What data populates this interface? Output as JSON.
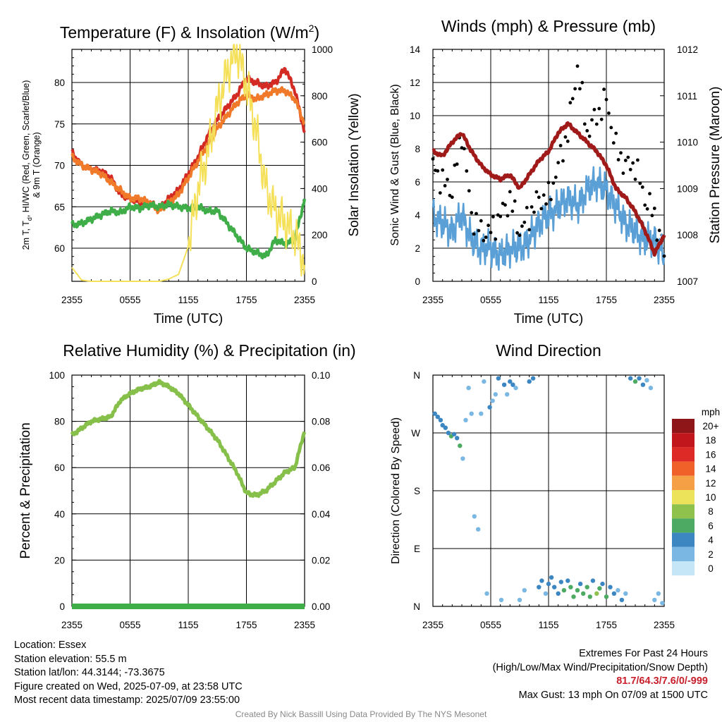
{
  "colors": {
    "t2m": "#d32a24",
    "dew": "#3fae48",
    "hiwc": "#cf1e2a",
    "t9m": "#f07a2a",
    "solar": "#f5e05a",
    "wind": "#5aa0d6",
    "gust": "#000000",
    "pressure": "#a01a1a",
    "rh": "#86c04a",
    "precip": "#3fae48"
  },
  "chart_data": [
    {
      "type": "line",
      "title": "Temperature (F) & Insolation (W/m",
      "title_superscript": "2",
      "title_tail": ")",
      "xlabel": "Time (UTC)",
      "ylabel_line1": "2m T, T",
      "ylabel_subscript": "d",
      "ylabel_line1_tail": ", HI/WC (Red, Green, Scarlet/Blue)",
      "ylabel_line2": "& 9m T (Orange)",
      "ylabel_right": "Solar Insolation (Yellow)",
      "x_ticks": [
        "2355",
        "0555",
        "1155",
        "1755",
        "2355"
      ],
      "ylim": [
        56,
        84
      ],
      "y_ticks": [
        "60",
        "65",
        "70",
        "75",
        "80"
      ],
      "y2lim": [
        0,
        1000
      ],
      "y2_ticks": [
        "0",
        "200",
        "400",
        "600",
        "800",
        "1000"
      ],
      "grid": true,
      "x_hours": [
        0,
        1,
        2,
        3,
        4,
        5,
        6,
        7,
        8,
        9,
        10,
        11,
        12,
        13,
        14,
        15,
        16,
        17,
        18,
        19,
        20,
        21,
        22,
        23,
        24
      ],
      "series": [
        {
          "key": "t2m",
          "values": [
            71.5,
            70,
            69.5,
            69.3,
            68.5,
            66.5,
            66,
            65.5,
            65.5,
            64.8,
            66,
            67,
            69,
            71,
            73.5,
            75.5,
            77,
            78.5,
            80.5,
            80,
            79.5,
            80,
            81.7,
            79,
            74
          ]
        },
        {
          "key": "t9m",
          "values": [
            71,
            70,
            69.5,
            69,
            68,
            67,
            66,
            66,
            65.5,
            64.5,
            65.5,
            66.5,
            68.5,
            70.5,
            72.5,
            74.5,
            76,
            77.5,
            78.5,
            78,
            78.5,
            79,
            79,
            78,
            75
          ]
        },
        {
          "key": "dew",
          "values": [
            62.8,
            63,
            63.5,
            64,
            64.5,
            64.3,
            65,
            64.8,
            65.2,
            65,
            65.3,
            65,
            64.8,
            65,
            64.5,
            64.5,
            63,
            61.5,
            60,
            59.5,
            59,
            61,
            60.5,
            61,
            66
          ]
        },
        {
          "key": "solar",
          "axis": "right",
          "values": [
            60,
            5,
            0,
            0,
            0,
            0,
            0,
            0,
            0,
            0,
            10,
            30,
            150,
            400,
            550,
            750,
            900,
            1000,
            850,
            650,
            400,
            300,
            250,
            200,
            80
          ]
        }
      ]
    },
    {
      "type": "line",
      "title": "Winds (mph) & Pressure (mb)",
      "xlabel": "Time (UTC)",
      "ylabel": "Sonic Wind & Gust (Blue, Black)",
      "ylabel_right": "Station Pressure (Maroon)",
      "x_ticks": [
        "2355",
        "0555",
        "1155",
        "1755",
        "2355"
      ],
      "ylim": [
        0,
        14
      ],
      "y_ticks": [
        "0",
        "2",
        "4",
        "6",
        "8",
        "10",
        "12",
        "14"
      ],
      "y2lim": [
        1007,
        1012
      ],
      "y2_ticks": [
        "1007",
        "1008",
        "1009",
        "1010",
        "1011",
        "1012"
      ],
      "grid": true,
      "x_hours": [
        0,
        1,
        2,
        3,
        4,
        5,
        6,
        7,
        8,
        9,
        10,
        11,
        12,
        13,
        14,
        15,
        16,
        17,
        18,
        19,
        20,
        21,
        22,
        23,
        24
      ],
      "series": [
        {
          "key": "wind",
          "values": [
            4,
            3.5,
            3,
            4,
            2.5,
            2,
            2,
            1.5,
            2,
            2,
            2.5,
            3.5,
            4,
            4.5,
            5,
            4.5,
            5.5,
            6,
            5.5,
            4.5,
            3.5,
            3,
            2.5,
            2.5,
            1.5
          ]
        },
        {
          "key": "gust",
          "type": "scatter",
          "values": [
            7,
            6,
            5.5,
            9,
            4,
            3,
            3,
            4,
            5,
            3,
            4,
            5,
            5,
            7,
            9,
            13,
            9,
            10,
            11,
            8,
            7,
            7,
            5,
            4,
            1.5
          ]
        },
        {
          "key": "pressure",
          "axis": "right",
          "values": [
            1009.8,
            1009.7,
            1010.0,
            1010.2,
            1009.8,
            1009.5,
            1009.3,
            1009.2,
            1009.3,
            1009.0,
            1009.3,
            1009.6,
            1009.8,
            1010.2,
            1010.4,
            1010.2,
            1010.0,
            1009.8,
            1009.5,
            1009.0,
            1008.8,
            1008.5,
            1008.1,
            1007.6,
            1008.0
          ]
        }
      ]
    },
    {
      "type": "line",
      "title": "Relative Humidity (%) & Precipitation (in)",
      "ylabel": "Percent & Precipitation",
      "x_ticks": [
        "2355",
        "0555",
        "1155",
        "1755",
        "2355"
      ],
      "ylim": [
        0,
        100
      ],
      "y_ticks": [
        "0",
        "20",
        "40",
        "60",
        "80",
        "100"
      ],
      "y2lim": [
        0,
        0.1
      ],
      "y2_ticks": [
        "0.00",
        "0.02",
        "0.04",
        "0.06",
        "0.08",
        "0.10"
      ],
      "grid": true,
      "x_hours": [
        0,
        1,
        2,
        3,
        4,
        5,
        6,
        7,
        8,
        9,
        10,
        11,
        12,
        13,
        14,
        15,
        16,
        17,
        18,
        19,
        20,
        21,
        22,
        23,
        24
      ],
      "series": [
        {
          "key": "rh",
          "values": [
            74,
            77,
            80,
            81,
            82,
            89,
            92,
            94,
            95,
            97,
            95,
            92,
            87,
            82,
            77,
            72,
            65,
            58,
            49,
            48,
            50,
            54,
            58,
            60,
            76
          ]
        },
        {
          "key": "precip",
          "axis": "right",
          "values": [
            0,
            0,
            0,
            0,
            0,
            0,
            0,
            0,
            0,
            0,
            0,
            0,
            0,
            0,
            0,
            0,
            0,
            0,
            0,
            0,
            0,
            0,
            0,
            0,
            0
          ]
        }
      ]
    },
    {
      "type": "scatter",
      "title": "Wind Direction",
      "ylabel": "Direction (Colored By Speed)",
      "x_ticks": [
        "2355",
        "0555",
        "1155",
        "1755",
        "2355"
      ],
      "y_ticks": [
        "N",
        "E",
        "S",
        "W",
        "N"
      ],
      "ylim_degrees": [
        0,
        360
      ],
      "grid": true,
      "colorbar": {
        "title": "mph",
        "labels": [
          "20+",
          "18",
          "16",
          "14",
          "12",
          "10",
          "8",
          "6",
          "4",
          "2",
          "0"
        ],
        "colors": [
          "#8e1518",
          "#c2161d",
          "#de2a26",
          "#f0612a",
          "#f6a045",
          "#ece35a",
          "#8fc24c",
          "#4caa63",
          "#3c86c2",
          "#7ab8e3",
          "#c5e6f7"
        ]
      },
      "points": [
        {
          "hour": 0.2,
          "deg": 300,
          "speed": 4
        },
        {
          "hour": 0.5,
          "deg": 295,
          "speed": 4
        },
        {
          "hour": 0.8,
          "deg": 290,
          "speed": 3
        },
        {
          "hour": 1.0,
          "deg": 282,
          "speed": 4
        },
        {
          "hour": 1.3,
          "deg": 278,
          "speed": 3
        },
        {
          "hour": 1.6,
          "deg": 270,
          "speed": 4
        },
        {
          "hour": 1.9,
          "deg": 265,
          "speed": 5
        },
        {
          "hour": 2.2,
          "deg": 268,
          "speed": 4
        },
        {
          "hour": 2.5,
          "deg": 262,
          "speed": 3
        },
        {
          "hour": 2.8,
          "deg": 250,
          "speed": 6
        },
        {
          "hour": 3.1,
          "deg": 230,
          "speed": 2
        },
        {
          "hour": 3.4,
          "deg": 290,
          "speed": 2
        },
        {
          "hour": 3.7,
          "deg": 340,
          "speed": 1
        },
        {
          "hour": 4.0,
          "deg": 300,
          "speed": 2
        },
        {
          "hour": 4.3,
          "deg": 140,
          "speed": 2
        },
        {
          "hour": 4.7,
          "deg": 120,
          "speed": 1
        },
        {
          "hour": 5.0,
          "deg": 300,
          "speed": 2
        },
        {
          "hour": 5.3,
          "deg": 350,
          "speed": 2
        },
        {
          "hour": 5.6,
          "deg": 20,
          "speed": 1
        },
        {
          "hour": 5.9,
          "deg": 310,
          "speed": 3
        },
        {
          "hour": 6.2,
          "deg": 320,
          "speed": 2
        },
        {
          "hour": 6.5,
          "deg": 330,
          "speed": 2
        },
        {
          "hour": 6.8,
          "deg": 355,
          "speed": 3
        },
        {
          "hour": 7.1,
          "deg": 10,
          "speed": 2
        },
        {
          "hour": 7.4,
          "deg": 345,
          "speed": 3
        },
        {
          "hour": 7.7,
          "deg": 330,
          "speed": 2
        },
        {
          "hour": 8.0,
          "deg": 350,
          "speed": 4
        },
        {
          "hour": 8.3,
          "deg": 345,
          "speed": 3
        },
        {
          "hour": 8.6,
          "deg": 340,
          "speed": 2
        },
        {
          "hour": 9.0,
          "deg": 10,
          "speed": 1
        },
        {
          "hour": 9.5,
          "deg": 25,
          "speed": 2
        },
        {
          "hour": 10.0,
          "deg": 350,
          "speed": 4
        },
        {
          "hour": 10.4,
          "deg": 355,
          "speed": 3
        },
        {
          "hour": 11.0,
          "deg": 30,
          "speed": 4
        },
        {
          "hour": 11.3,
          "deg": 40,
          "speed": 3
        },
        {
          "hour": 11.7,
          "deg": 20,
          "speed": 2
        },
        {
          "hour": 12.0,
          "deg": 35,
          "speed": 4
        },
        {
          "hour": 12.3,
          "deg": 45,
          "speed": 3
        },
        {
          "hour": 12.6,
          "deg": 30,
          "speed": 4
        },
        {
          "hour": 13.0,
          "deg": 20,
          "speed": 3
        },
        {
          "hour": 13.3,
          "deg": 38,
          "speed": 4
        },
        {
          "hour": 13.6,
          "deg": 25,
          "speed": 5
        },
        {
          "hour": 14.0,
          "deg": 40,
          "speed": 3
        },
        {
          "hour": 14.3,
          "deg": 30,
          "speed": 5
        },
        {
          "hour": 14.6,
          "deg": 15,
          "speed": 6
        },
        {
          "hour": 15.0,
          "deg": 25,
          "speed": 6
        },
        {
          "hour": 15.3,
          "deg": 35,
          "speed": 4
        },
        {
          "hour": 15.6,
          "deg": 20,
          "speed": 5
        },
        {
          "hour": 16.0,
          "deg": 30,
          "speed": 6
        },
        {
          "hour": 16.3,
          "deg": 15,
          "speed": 5
        },
        {
          "hour": 16.6,
          "deg": 40,
          "speed": 4
        },
        {
          "hour": 17.0,
          "deg": 20,
          "speed": 7
        },
        {
          "hour": 17.3,
          "deg": 28,
          "speed": 5
        },
        {
          "hour": 17.6,
          "deg": 35,
          "speed": 4
        },
        {
          "hour": 18.0,
          "deg": 15,
          "speed": 5
        },
        {
          "hour": 18.4,
          "deg": 30,
          "speed": 4
        },
        {
          "hour": 18.8,
          "deg": 20,
          "speed": 3
        },
        {
          "hour": 19.2,
          "deg": 25,
          "speed": 2
        },
        {
          "hour": 19.6,
          "deg": 10,
          "speed": 4
        },
        {
          "hour": 20.0,
          "deg": 20,
          "speed": 2
        },
        {
          "hour": 20.5,
          "deg": 355,
          "speed": 4
        },
        {
          "hour": 21.0,
          "deg": 350,
          "speed": 6
        },
        {
          "hour": 21.4,
          "deg": 355,
          "speed": 4
        },
        {
          "hour": 21.8,
          "deg": 345,
          "speed": 3
        },
        {
          "hour": 22.2,
          "deg": 352,
          "speed": 2
        },
        {
          "hour": 22.6,
          "deg": 340,
          "speed": 1
        },
        {
          "hour": 23.0,
          "deg": 10,
          "speed": 2
        },
        {
          "hour": 23.4,
          "deg": 20,
          "speed": 2
        },
        {
          "hour": 23.8,
          "deg": 5,
          "speed": 1
        }
      ]
    }
  ],
  "info": {
    "location": "Location: Essex",
    "elevation": "Station elevation: 55.5 m",
    "latlon": "Station lat/lon: 44.3144; -73.3675",
    "created": "Figure created on Wed, 2025-07-09, at 23:58 UTC",
    "recent": "Most recent data timestamp: 2025/07/09 23:55:00"
  },
  "extremes": {
    "title": "Extremes For Past 24 Hours",
    "subtitle": "(High/Low/Max Wind/Precipitation/Snow Depth)",
    "values": "81.7/64.3/7.6/0/-999",
    "max_gust": "Max Gust: 13 mph On 07/09 at 1500 UTC"
  },
  "credit": "Created By Nick Bassill Using Data Provided By The NYS Mesonet"
}
